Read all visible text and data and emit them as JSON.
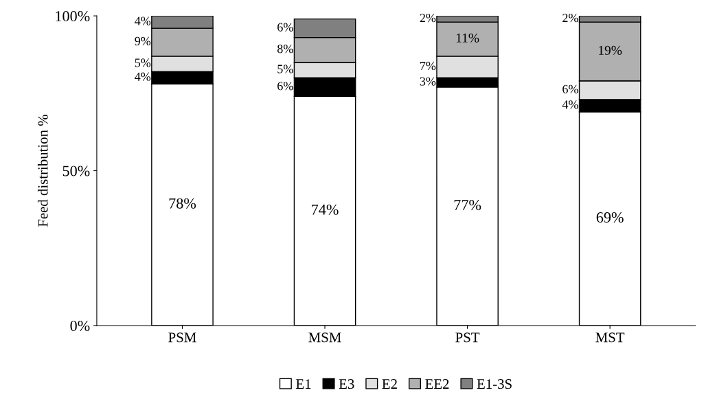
{
  "chart_data": {
    "type": "bar",
    "stacked": true,
    "ylabel": "Feed distribution %",
    "categories": [
      "PSM",
      "MSM",
      "PST",
      "MST"
    ],
    "series": [
      {
        "name": "E1",
        "color": "#ffffff",
        "values": [
          78,
          74,
          77,
          69
        ],
        "value_labels": [
          "78%",
          "74%",
          "77%",
          "69%"
        ]
      },
      {
        "name": "E3",
        "color": "#000000",
        "values": [
          4,
          6,
          3,
          4
        ],
        "value_labels": [
          "4%",
          "6%",
          "3%",
          "4%"
        ]
      },
      {
        "name": "E2",
        "color": "#e0e0e0",
        "values": [
          5,
          5,
          7,
          6
        ],
        "value_labels": [
          "5%",
          "5%",
          "7%",
          "6%"
        ]
      },
      {
        "name": "EE2",
        "color": "#b0b0b0",
        "values": [
          9,
          8,
          11,
          19
        ],
        "value_labels": [
          "9%",
          "8%",
          "11%",
          "19%"
        ]
      },
      {
        "name": "E1-3S",
        "color": "#808080",
        "values": [
          4,
          6,
          2,
          2
        ],
        "value_labels": [
          "4%",
          "6%",
          "2%",
          "2%"
        ]
      }
    ],
    "ylim": [
      0,
      100
    ],
    "yticks": [
      {
        "value": 0,
        "label": "0%"
      },
      {
        "value": 50,
        "label": "50%"
      },
      {
        "value": 100,
        "label": "100%"
      }
    ],
    "legend": "bottom",
    "grid": false
  }
}
